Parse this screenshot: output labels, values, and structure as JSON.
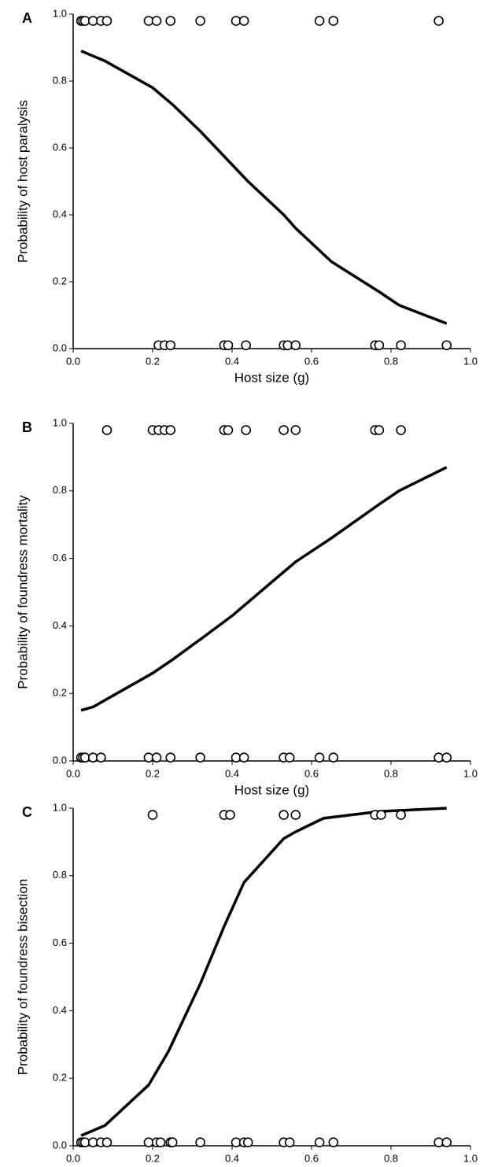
{
  "chart_data": [
    {
      "type": "scatter",
      "panel": "A",
      "xlabel": "Host size (g)",
      "ylabel": "Probability of host paralysis",
      "xlim": [
        0,
        1
      ],
      "ylim": [
        0,
        1
      ],
      "xticks": [
        {
          "value": 0,
          "label": "0.0"
        },
        0.2,
        0.4,
        0.6,
        0.8,
        {
          "value": 1,
          "label": "1.0"
        }
      ],
      "yticks": [
        {
          "value": 0,
          "label": "0.0"
        },
        0.2,
        0.4,
        0.6,
        0.8,
        {
          "value": 1,
          "label": "1.0"
        }
      ],
      "points": {
        "x": [
          0.02,
          0.025,
          0.03,
          0.05,
          0.07,
          0.085,
          0.19,
          0.21,
          0.245,
          0.32,
          0.41,
          0.43,
          0.62,
          0.655,
          0.92,
          0.215,
          0.23,
          0.245,
          0.38,
          0.39,
          0.435,
          0.53,
          0.54,
          0.56,
          0.76,
          0.77,
          0.825,
          0.94
        ],
        "values": [
          0.98,
          0.98,
          0.98,
          0.98,
          0.98,
          0.98,
          0.98,
          0.98,
          0.98,
          0.98,
          0.98,
          0.98,
          0.98,
          0.98,
          0.98,
          0.01,
          0.01,
          0.01,
          0.01,
          0.01,
          0.01,
          0.01,
          0.01,
          0.01,
          0.01,
          0.01,
          0.01,
          0.01
        ]
      },
      "curve": {
        "x": [
          0.02,
          0.08,
          0.2,
          0.25,
          0.32,
          0.4,
          0.44,
          0.53,
          0.56,
          0.65,
          0.77,
          0.82,
          0.94
        ],
        "values": [
          0.89,
          0.86,
          0.78,
          0.73,
          0.65,
          0.55,
          0.5,
          0.4,
          0.36,
          0.26,
          0.17,
          0.13,
          0.075
        ]
      }
    },
    {
      "type": "scatter",
      "panel": "B",
      "xlabel": "Host size (g)",
      "ylabel": "Probability of foundress mortality",
      "xlim": [
        0,
        1
      ],
      "ylim": [
        0,
        1
      ],
      "xticks": [
        {
          "value": 0,
          "label": "0.0"
        },
        0.2,
        0.4,
        0.6,
        0.8,
        {
          "value": 1,
          "label": "1.0"
        }
      ],
      "yticks": [
        {
          "value": 0,
          "label": "0.0"
        },
        0.2,
        0.4,
        0.6,
        0.8,
        {
          "value": 1,
          "label": "1.0"
        }
      ],
      "points": {
        "x": [
          0.085,
          0.2,
          0.215,
          0.23,
          0.245,
          0.38,
          0.39,
          0.435,
          0.53,
          0.56,
          0.76,
          0.77,
          0.825,
          0.02,
          0.025,
          0.03,
          0.05,
          0.07,
          0.19,
          0.21,
          0.245,
          0.32,
          0.41,
          0.43,
          0.53,
          0.545,
          0.62,
          0.655,
          0.92,
          0.94
        ],
        "values": [
          0.98,
          0.98,
          0.98,
          0.98,
          0.98,
          0.98,
          0.98,
          0.98,
          0.98,
          0.98,
          0.98,
          0.98,
          0.98,
          0.01,
          0.01,
          0.01,
          0.01,
          0.01,
          0.01,
          0.01,
          0.01,
          0.01,
          0.01,
          0.01,
          0.01,
          0.01,
          0.01,
          0.01,
          0.01,
          0.01
        ]
      },
      "curve": {
        "x": [
          0.02,
          0.05,
          0.08,
          0.2,
          0.25,
          0.32,
          0.4,
          0.44,
          0.53,
          0.56,
          0.65,
          0.77,
          0.82,
          0.94
        ],
        "values": [
          0.15,
          0.16,
          0.18,
          0.26,
          0.3,
          0.36,
          0.43,
          0.47,
          0.56,
          0.59,
          0.66,
          0.76,
          0.8,
          0.87
        ]
      }
    },
    {
      "type": "scatter",
      "panel": "C",
      "xlabel": "Host size (g)",
      "ylabel": "Probability of foundress bisection",
      "xlim": [
        0,
        1
      ],
      "ylim": [
        0,
        1
      ],
      "xticks": [
        {
          "value": 0,
          "label": "0.0"
        },
        0.2,
        0.4,
        0.6,
        0.8,
        {
          "value": 1,
          "label": "1.0"
        }
      ],
      "yticks": [
        {
          "value": 0,
          "label": "0.0"
        },
        0.2,
        0.4,
        0.6,
        0.8,
        {
          "value": 1,
          "label": "1.0"
        }
      ],
      "points": {
        "x": [
          0.2,
          0.38,
          0.395,
          0.53,
          0.56,
          0.76,
          0.775,
          0.825,
          0.02,
          0.025,
          0.03,
          0.05,
          0.07,
          0.085,
          0.19,
          0.21,
          0.22,
          0.245,
          0.25,
          0.32,
          0.41,
          0.43,
          0.44,
          0.53,
          0.545,
          0.62,
          0.655,
          0.92,
          0.94
        ],
        "values": [
          0.98,
          0.98,
          0.98,
          0.98,
          0.98,
          0.98,
          0.98,
          0.98,
          0.01,
          0.01,
          0.01,
          0.01,
          0.01,
          0.01,
          0.01,
          0.01,
          0.01,
          0.01,
          0.01,
          0.01,
          0.01,
          0.01,
          0.01,
          0.01,
          0.01,
          0.01,
          0.01,
          0.01,
          0.01
        ]
      },
      "curve": {
        "x": [
          0.02,
          0.08,
          0.19,
          0.24,
          0.32,
          0.38,
          0.43,
          0.53,
          0.56,
          0.63,
          0.77,
          0.94
        ],
        "values": [
          0.03,
          0.06,
          0.18,
          0.28,
          0.48,
          0.65,
          0.78,
          0.91,
          0.93,
          0.97,
          0.99,
          1.0
        ]
      }
    }
  ]
}
